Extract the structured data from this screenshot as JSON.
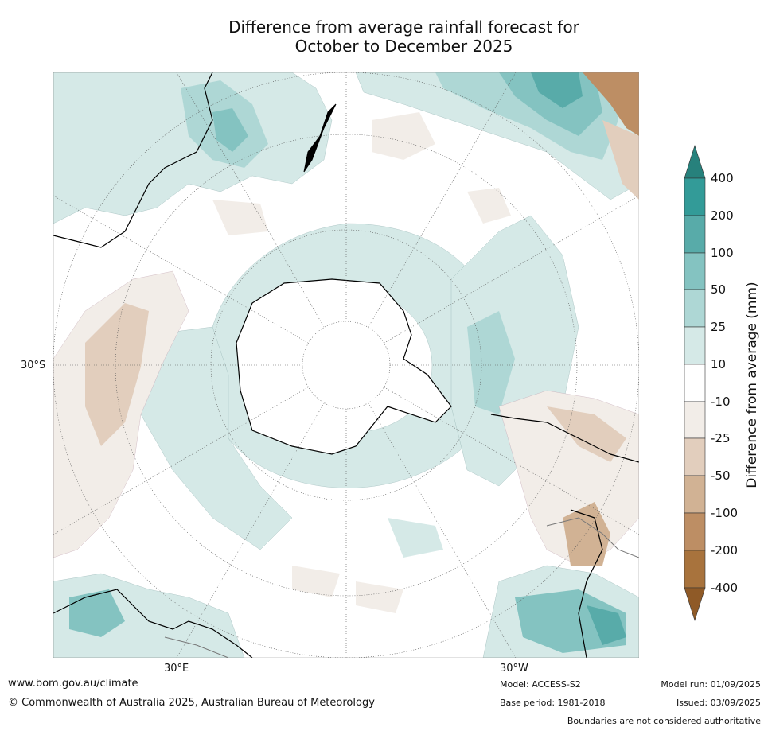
{
  "title": {
    "line1": "Difference from average rainfall forecast for",
    "line2": "October to December 2025"
  },
  "map": {
    "projection": "south-polar-stereographic",
    "lat_label": "30°S",
    "lon_labels": {
      "east": "30°E",
      "west": "30°W"
    }
  },
  "colorbar": {
    "title": "Difference from average (mm)",
    "labels": [
      "400",
      "200",
      "100",
      "50",
      "25",
      "10",
      "-10",
      "-25",
      "-50",
      "-100",
      "-200",
      "-400"
    ],
    "colors": {
      "extend_top": "#27817c",
      "gt_200": "#339b98",
      "100_200": "#58aba9",
      "50_100": "#84c3c1",
      "25_50": "#aed7d5",
      "10_25": "#d5e9e7",
      "neutral": "#ffffff",
      "m25_m10": "#f2ede8",
      "m50_m25": "#e2cebd",
      "m100_m50": "#d1b294",
      "m200_m100": "#bd8e64",
      "lt_m200": "#a8733d",
      "extend_bottom": "#8f5a27"
    }
  },
  "footer": {
    "website": "www.bom.gov.au/climate",
    "copyright": "© Commonwealth of Australia 2025, Australian Bureau of Meteorology",
    "model": "Model: ACCESS-S2",
    "base_period": "Base period: 1981-2018",
    "model_run": "Model run: 01/09/2025",
    "issued": "Issued: 03/09/2025",
    "disclaimer": "Boundaries are not considered authoritative"
  }
}
